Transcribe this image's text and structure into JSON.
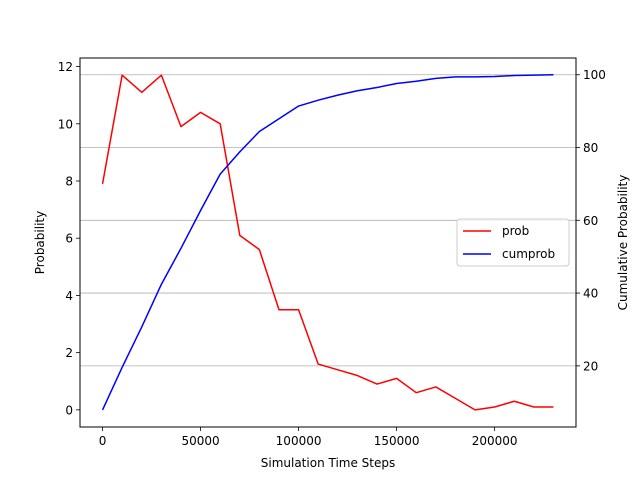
{
  "chart_data": {
    "type": "line",
    "xlabel": "Simulation Time Steps",
    "ylabel_left": "Probability",
    "ylabel_right": "Cumulative Probability",
    "xlim": [
      -11500,
      241500
    ],
    "ylim_left": [
      -0.6,
      12.3
    ],
    "ylim_right": [
      3.2,
      104.6
    ],
    "x_ticks": [
      0,
      50000,
      100000,
      150000,
      200000
    ],
    "x_tick_labels": [
      "0",
      "50000",
      "100000",
      "150000",
      "200000"
    ],
    "y_left_ticks": [
      0,
      2,
      4,
      6,
      8,
      10,
      12
    ],
    "y_left_tick_labels": [
      "0",
      "2",
      "4",
      "6",
      "8",
      "10",
      "12"
    ],
    "y_right_ticks": [
      20,
      40,
      60,
      80,
      100
    ],
    "y_right_tick_labels": [
      "20",
      "40",
      "60",
      "80",
      "100"
    ],
    "grid": "horizontal lines at right-axis ticks",
    "legend_position": "center-right",
    "series": [
      {
        "name": "prob",
        "axis": "left",
        "color": "#ff0000",
        "x": [
          0,
          10000,
          20000,
          30000,
          40000,
          50000,
          60000,
          70000,
          80000,
          90000,
          100000,
          110000,
          120000,
          130000,
          140000,
          150000,
          160000,
          170000,
          180000,
          190000,
          200000,
          210000,
          220000,
          230000
        ],
        "y": [
          7.9,
          11.7,
          11.1,
          11.7,
          9.9,
          10.4,
          10.0,
          6.1,
          5.6,
          3.5,
          3.5,
          1.6,
          1.4,
          1.2,
          0.9,
          1.1,
          0.6,
          0.8,
          0.4,
          0.0,
          0.1,
          0.3,
          0.1,
          0.1
        ]
      },
      {
        "name": "cumprob",
        "axis": "right",
        "color": "#0000ff",
        "x": [
          0,
          10000,
          20000,
          30000,
          40000,
          50000,
          60000,
          70000,
          80000,
          90000,
          100000,
          110000,
          120000,
          130000,
          140000,
          150000,
          160000,
          170000,
          180000,
          190000,
          200000,
          210000,
          220000,
          230000
        ],
        "y": [
          7.9,
          19.6,
          30.7,
          42.4,
          52.3,
          62.7,
          72.7,
          78.8,
          84.4,
          87.9,
          91.4,
          93.0,
          94.4,
          95.6,
          96.5,
          97.6,
          98.2,
          99.0,
          99.4,
          99.4,
          99.5,
          99.8,
          99.9,
          100.0
        ]
      }
    ]
  }
}
